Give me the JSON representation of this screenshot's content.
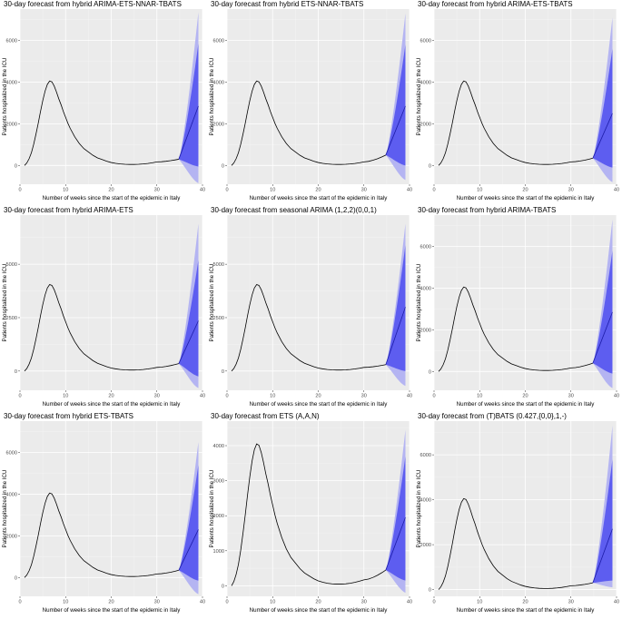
{
  "colors": {
    "panel_bg": "#ebebeb",
    "grid_major": "#ffffff",
    "history_line": "#000000",
    "ci80": "#5d5df0",
    "ci95": "#b4b4f2",
    "forecast_line": "#1c1ca8",
    "tick_text": "#4d4d4d"
  },
  "shared": {
    "xlabel": "Number of weeks since the start of the epidemic in Italy",
    "ylabel": "Patients hospitalized in the ICU"
  },
  "chart_data": [
    {
      "type": "line",
      "title": "30-day forecast from hybrid ARIMA-ETS-NNAR-TBATS",
      "xlabel": "Number of weeks since the start of the epidemic in Italy",
      "ylabel": "Patients hospitalized in the ICU",
      "xlim": [
        0,
        40
      ],
      "ylim": [
        -900,
        7500
      ],
      "xticks": [
        0,
        10,
        20,
        30,
        40
      ],
      "yticks": [
        0,
        2000,
        4000,
        6000
      ],
      "grid": true,
      "legend": "none",
      "history": {
        "peak": 4050,
        "end_value": 300,
        "end_week": 34.8
      },
      "forecast": {
        "start_week": 34.8,
        "end_week": 39.1,
        "mean_end": 2850,
        "lo80_end": -50,
        "hi80_end": 5850,
        "lo95_end": -850,
        "hi95_end": 7350
      }
    },
    {
      "type": "line",
      "title": "30-day forecast from hybrid ETS-NNAR-TBATS",
      "xlabel": "Number of weeks since the start of the epidemic in Italy",
      "ylabel": "Patients hospitalized in the ICU",
      "xlim": [
        0,
        40
      ],
      "ylim": [
        -900,
        7500
      ],
      "xticks": [
        0,
        10,
        20,
        30,
        40
      ],
      "yticks": [
        0,
        2000,
        4000,
        6000
      ],
      "grid": true,
      "legend": "none",
      "history": {
        "peak": 4050,
        "end_value": 500,
        "end_week": 34.8
      },
      "forecast": {
        "start_week": 34.8,
        "end_week": 39.1,
        "mean_end": 2850,
        "lo80_end": 0,
        "hi80_end": 5800,
        "lo95_end": -700,
        "hi95_end": 7300
      }
    },
    {
      "type": "line",
      "title": "30-day forecast from hybrid ARIMA-ETS-TBATS",
      "xlabel": "Number of weeks since the start of the epidemic in Italy",
      "ylabel": "Patients hospitalized in the ICU",
      "xlim": [
        0,
        40
      ],
      "ylim": [
        -900,
        7500
      ],
      "xticks": [
        0,
        10,
        20,
        30,
        40
      ],
      "yticks": [
        0,
        2000,
        4000,
        6000
      ],
      "grid": true,
      "legend": "none",
      "history": {
        "peak": 4050,
        "end_value": 350,
        "end_week": 34.8
      },
      "forecast": {
        "start_week": 34.8,
        "end_week": 39.1,
        "mean_end": 2500,
        "lo80_end": -100,
        "hi80_end": 5600,
        "lo95_end": -800,
        "hi95_end": 7100
      }
    },
    {
      "type": "line",
      "title": "30-day forecast from hybrid ARIMA-ETS",
      "xlabel": "Number of weeks since the start of the epidemic in Italy",
      "ylabel": "Patients hospitalized in the ICU",
      "xlim": [
        0,
        40
      ],
      "ylim": [
        -900,
        7300
      ],
      "xticks": [
        0,
        10,
        20,
        30,
        40
      ],
      "yticks": [
        0,
        2500,
        5000
      ],
      "grid": true,
      "legend": "none",
      "history": {
        "peak": 4050,
        "end_value": 350,
        "end_week": 34.8
      },
      "forecast": {
        "start_week": 34.8,
        "end_week": 39.1,
        "mean_end": 2350,
        "lo80_end": -250,
        "hi80_end": 5200,
        "lo95_end": -800,
        "hi95_end": 6900
      }
    },
    {
      "type": "line",
      "title": "30-day forecast from seasonal ARIMA (1,2,2)(0,0,1)",
      "xlabel": "Number of weeks since the start of the epidemic in Italy",
      "ylabel": "Patients hospitalized in the ICU",
      "xlim": [
        0,
        40
      ],
      "ylim": [
        -900,
        7300
      ],
      "xticks": [
        0,
        10,
        20,
        30,
        40
      ],
      "yticks": [
        0,
        2500,
        5000
      ],
      "grid": true,
      "legend": "none",
      "history": {
        "peak": 4050,
        "end_value": 300,
        "end_week": 34.8
      },
      "forecast": {
        "start_week": 34.8,
        "end_week": 39.1,
        "mean_end": 3000,
        "lo80_end": 0,
        "hi80_end": 5900,
        "lo95_end": -700,
        "hi95_end": 6900
      }
    },
    {
      "type": "line",
      "title": "30-day forecast from hybrid ARIMA-TBATS",
      "xlabel": "Number of weeks since the start of the epidemic in Italy",
      "ylabel": "Patients hospitalized in the ICU",
      "xlim": [
        0,
        40
      ],
      "ylim": [
        -900,
        7500
      ],
      "xticks": [
        0,
        10,
        20,
        30,
        40
      ],
      "yticks": [
        0,
        2000,
        4000,
        6000
      ],
      "grid": true,
      "legend": "none",
      "history": {
        "peak": 4050,
        "end_value": 400,
        "end_week": 34.8
      },
      "forecast": {
        "start_week": 34.8,
        "end_week": 39.1,
        "mean_end": 2850,
        "lo80_end": -100,
        "hi80_end": 5800,
        "lo95_end": -800,
        "hi95_end": 7300
      }
    },
    {
      "type": "line",
      "title": "30-day forecast from hybrid ETS-TBATS",
      "xlabel": "Number of weeks since the start of the epidemic in Italy",
      "ylabel": "Patients hospitalized in the ICU",
      "xlim": [
        0,
        40
      ],
      "ylim": [
        -900,
        7500
      ],
      "xticks": [
        0,
        10,
        20,
        30,
        40
      ],
      "yticks": [
        0,
        2000,
        4000,
        6000
      ],
      "grid": true,
      "legend": "none",
      "history": {
        "peak": 4050,
        "end_value": 350,
        "end_week": 34.8
      },
      "forecast": {
        "start_week": 34.8,
        "end_week": 39.1,
        "mean_end": 2300,
        "lo80_end": -150,
        "hi80_end": 5400,
        "lo95_end": -800,
        "hi95_end": 6500
      }
    },
    {
      "type": "line",
      "title": "30-day forecast from ETS (A,A,N)",
      "xlabel": "Number of weeks since the start of the epidemic in Italy",
      "ylabel": "Patients hospitalized in the ICU",
      "xlim": [
        0,
        40
      ],
      "ylim": [
        -300,
        4700
      ],
      "xticks": [
        0,
        10,
        20,
        30,
        40
      ],
      "yticks": [
        0,
        1000,
        2000,
        3000,
        4000
      ],
      "grid": true,
      "legend": "none",
      "history": {
        "peak": 4050,
        "end_value": 450,
        "end_week": 34.8
      },
      "forecast": {
        "start_week": 34.8,
        "end_week": 39.1,
        "mean_end": 1950,
        "lo80_end": 150,
        "hi80_end": 3700,
        "lo95_end": -200,
        "hi95_end": 4450
      }
    },
    {
      "type": "line",
      "title": "30-day forecast from (T)BATS (0.427,{0,0},1,-)",
      "xlabel": "Number of weeks since the start of the epidemic in Italy",
      "ylabel": "Patients hospitalized in the ICU",
      "xlim": [
        0,
        40
      ],
      "ylim": [
        -300,
        7500
      ],
      "xticks": [
        0,
        10,
        20,
        30,
        40
      ],
      "yticks": [
        0,
        2000,
        4000,
        6000
      ],
      "grid": true,
      "legend": "none",
      "history": {
        "peak": 4050,
        "end_value": 300,
        "end_week": 34.8
      },
      "forecast": {
        "start_week": 34.8,
        "end_week": 39.1,
        "mean_end": 2700,
        "lo80_end": 400,
        "hi80_end": 5800,
        "lo95_end": 100,
        "hi95_end": 7300
      }
    }
  ]
}
